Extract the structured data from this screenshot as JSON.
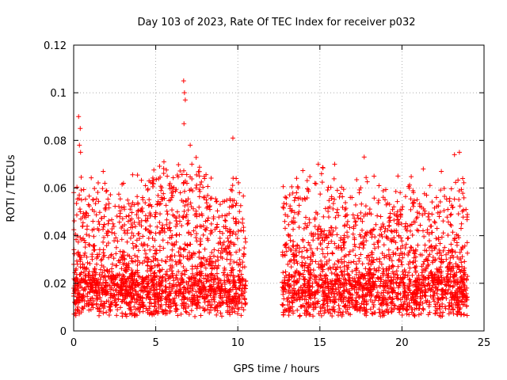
{
  "chart_data": {
    "type": "scatter",
    "title": "Day 103 of 2023, Rate Of TEC Index for receiver p032",
    "xlabel": "GPS time / hours",
    "ylabel": "ROTI / TECUs",
    "xlim": [
      0,
      25
    ],
    "ylim": [
      0,
      0.12
    ],
    "xticks": [
      0,
      5,
      10,
      15,
      20,
      25
    ],
    "xtick_labels": [
      "0",
      "5",
      "10",
      "15",
      "20",
      "25"
    ],
    "yticks": [
      0,
      0.02,
      0.04,
      0.06,
      0.08,
      0.1,
      0.12
    ],
    "ytick_labels": [
      "0",
      "0.02",
      "0.04",
      "0.06",
      "0.08",
      "0.1",
      "0.12"
    ],
    "grid": true,
    "marker": "+",
    "color": "#ff0000",
    "data_gap_hours": [
      10.5,
      12.7
    ],
    "series": [
      {
        "points": [
          [
            0.05,
            0.012
          ],
          [
            0.15,
            0.026
          ],
          [
            0.25,
            0.018
          ],
          [
            0.3,
            0.09
          ],
          [
            0.35,
            0.078
          ],
          [
            0.4,
            0.085
          ],
          [
            0.42,
            0.075
          ],
          [
            0.5,
            0.022
          ],
          [
            0.6,
            0.015
          ],
          [
            0.8,
            0.031
          ],
          [
            1.1,
            0.019
          ],
          [
            1.2,
            0.055
          ],
          [
            1.4,
            0.028
          ],
          [
            1.6,
            0.014
          ],
          [
            1.8,
            0.067
          ],
          [
            1.9,
            0.062
          ],
          [
            2.1,
            0.045
          ],
          [
            2.3,
            0.021
          ],
          [
            2.6,
            0.035
          ],
          [
            2.9,
            0.017
          ],
          [
            3.2,
            0.048
          ],
          [
            3.5,
            0.024
          ],
          [
            3.7,
            0.053
          ],
          [
            3.9,
            0.013
          ],
          [
            4.2,
            0.056
          ],
          [
            4.5,
            0.029
          ],
          [
            4.8,
            0.062
          ],
          [
            5.0,
            0.041
          ],
          [
            5.3,
            0.019
          ],
          [
            5.5,
            0.071
          ],
          [
            5.7,
            0.065
          ],
          [
            6.0,
            0.034
          ],
          [
            6.2,
            0.016
          ],
          [
            6.5,
            0.058
          ],
          [
            6.7,
            0.105
          ],
          [
            6.75,
            0.1
          ],
          [
            6.8,
            0.097
          ],
          [
            6.72,
            0.087
          ],
          [
            6.9,
            0.062
          ],
          [
            7.1,
            0.078
          ],
          [
            7.2,
            0.07
          ],
          [
            7.4,
            0.027
          ],
          [
            7.7,
            0.044
          ],
          [
            8.0,
            0.018
          ],
          [
            8.3,
            0.051
          ],
          [
            8.6,
            0.023
          ],
          [
            8.9,
            0.037
          ],
          [
            9.2,
            0.015
          ],
          [
            9.5,
            0.052
          ],
          [
            9.7,
            0.081
          ],
          [
            9.9,
            0.064
          ],
          [
            10.1,
            0.058
          ],
          [
            10.3,
            0.022
          ],
          [
            10.45,
            0.011
          ],
          [
            12.75,
            0.052
          ],
          [
            12.9,
            0.019
          ],
          [
            13.2,
            0.038
          ],
          [
            13.5,
            0.056
          ],
          [
            13.8,
            0.024
          ],
          [
            14.1,
            0.045
          ],
          [
            14.4,
            0.016
          ],
          [
            14.7,
            0.062
          ],
          [
            14.9,
            0.07
          ],
          [
            15.1,
            0.066
          ],
          [
            15.3,
            0.031
          ],
          [
            15.6,
            0.052
          ],
          [
            15.9,
            0.07
          ],
          [
            16.2,
            0.021
          ],
          [
            16.5,
            0.044
          ],
          [
            16.8,
            0.017
          ],
          [
            17.1,
            0.039
          ],
          [
            17.4,
            0.058
          ],
          [
            17.7,
            0.073
          ],
          [
            18.0,
            0.026
          ],
          [
            18.3,
            0.065
          ],
          [
            18.6,
            0.061
          ],
          [
            18.9,
            0.014
          ],
          [
            19.2,
            0.034
          ],
          [
            19.5,
            0.018
          ],
          [
            19.8,
            0.04
          ],
          [
            20.1,
            0.011
          ],
          [
            20.4,
            0.028
          ],
          [
            20.7,
            0.016
          ],
          [
            21.0,
            0.042
          ],
          [
            21.3,
            0.068
          ],
          [
            21.5,
            0.057
          ],
          [
            21.8,
            0.023
          ],
          [
            22.1,
            0.056
          ],
          [
            22.4,
            0.067
          ],
          [
            22.7,
            0.03
          ],
          [
            23.0,
            0.049
          ],
          [
            23.2,
            0.074
          ],
          [
            23.5,
            0.075
          ],
          [
            23.7,
            0.064
          ],
          [
            23.9,
            0.051
          ],
          [
            23.95,
            0.018
          ]
        ]
      }
    ]
  }
}
